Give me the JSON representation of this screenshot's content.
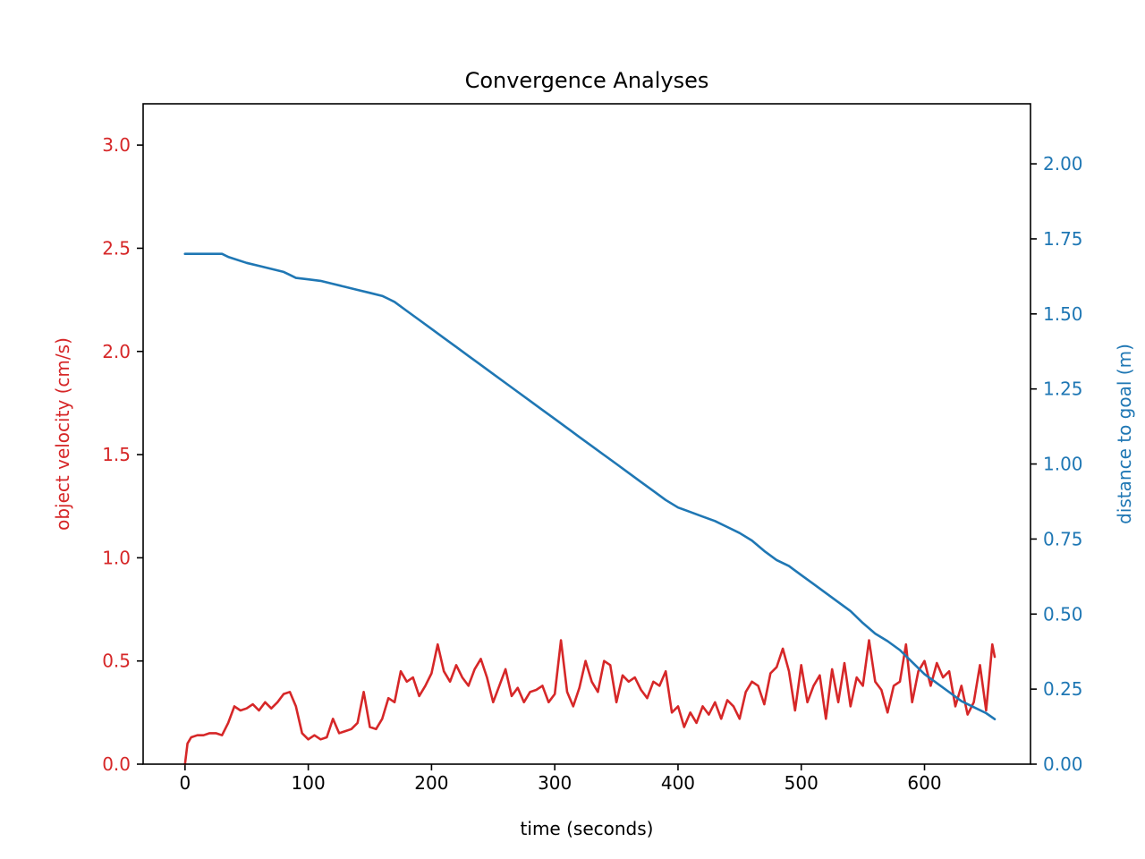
{
  "chart_data": {
    "type": "line",
    "title": "Convergence Analyses",
    "xlabel": "time (seconds)",
    "ylabel_left": "object velocity (cm/s)",
    "ylabel_right": "distance to goal (m)",
    "xlim": [
      -34,
      686
    ],
    "ylim_left": [
      0.0,
      3.2
    ],
    "ylim_right": [
      0.0,
      2.2
    ],
    "x_ticks": [
      0,
      100,
      200,
      300,
      400,
      500,
      600
    ],
    "x_tick_labels": [
      "0",
      "100",
      "200",
      "300",
      "400",
      "500",
      "600"
    ],
    "y_left_ticks": [
      0.0,
      0.5,
      1.0,
      1.5,
      2.0,
      2.5,
      3.0
    ],
    "y_left_tick_labels": [
      "0.0",
      "0.5",
      "1.0",
      "1.5",
      "2.0",
      "2.5",
      "3.0"
    ],
    "y_right_ticks": [
      0.0,
      0.25,
      0.5,
      0.75,
      1.0,
      1.25,
      1.5,
      1.75,
      2.0
    ],
    "y_right_tick_labels": [
      "0.00",
      "0.25",
      "0.50",
      "0.75",
      "1.00",
      "1.25",
      "1.50",
      "1.75",
      "2.00"
    ],
    "grid": false,
    "colors": {
      "left": "#d62728",
      "right": "#1f77b4",
      "axes": "#000000"
    },
    "series": [
      {
        "axis": "left",
        "x": [
          0,
          2,
          5,
          10,
          15,
          20,
          25,
          30,
          35,
          40,
          45,
          50,
          55,
          60,
          65,
          70,
          75,
          80,
          85,
          90,
          95,
          100,
          105,
          110,
          115,
          120,
          125,
          130,
          135,
          140,
          145,
          150,
          155,
          160,
          165,
          170,
          175,
          180,
          185,
          190,
          195,
          200,
          205,
          210,
          215,
          220,
          225,
          230,
          235,
          240,
          245,
          250,
          255,
          260,
          265,
          270,
          275,
          280,
          285,
          290,
          295,
          300,
          305,
          310,
          315,
          320,
          325,
          330,
          335,
          340,
          345,
          350,
          355,
          360,
          365,
          370,
          375,
          380,
          385,
          390,
          395,
          400,
          405,
          410,
          415,
          420,
          425,
          430,
          435,
          440,
          445,
          450,
          455,
          460,
          465,
          470,
          475,
          480,
          485,
          490,
          495,
          500,
          505,
          510,
          515,
          520,
          525,
          530,
          535,
          540,
          545,
          550,
          555,
          560,
          565,
          570,
          575,
          580,
          585,
          590,
          595,
          600,
          605,
          610,
          615,
          620,
          625,
          630,
          635,
          640,
          645,
          650,
          655,
          657
        ],
        "values": [
          0.0,
          0.1,
          0.13,
          0.14,
          0.14,
          0.15,
          0.15,
          0.14,
          0.2,
          0.28,
          0.26,
          0.27,
          0.29,
          0.26,
          0.3,
          0.27,
          0.3,
          0.34,
          0.35,
          0.28,
          0.15,
          0.12,
          0.14,
          0.12,
          0.13,
          0.22,
          0.15,
          0.16,
          0.17,
          0.2,
          0.35,
          0.18,
          0.17,
          0.22,
          0.32,
          0.3,
          0.45,
          0.4,
          0.42,
          0.33,
          0.38,
          0.44,
          0.58,
          0.45,
          0.4,
          0.48,
          0.42,
          0.38,
          0.46,
          0.51,
          0.42,
          0.3,
          0.38,
          0.46,
          0.33,
          0.37,
          0.3,
          0.35,
          0.36,
          0.38,
          0.3,
          0.34,
          0.6,
          0.35,
          0.28,
          0.37,
          0.5,
          0.4,
          0.35,
          0.5,
          0.48,
          0.3,
          0.43,
          0.4,
          0.42,
          0.36,
          0.32,
          0.4,
          0.38,
          0.45,
          0.25,
          0.28,
          0.18,
          0.25,
          0.2,
          0.28,
          0.24,
          0.3,
          0.22,
          0.31,
          0.28,
          0.22,
          0.35,
          0.4,
          0.38,
          0.29,
          0.44,
          0.47,
          0.56,
          0.45,
          0.26,
          0.48,
          0.3,
          0.38,
          0.43,
          0.22,
          0.46,
          0.3,
          0.49,
          0.28,
          0.42,
          0.38,
          0.6,
          0.4,
          0.36,
          0.25,
          0.38,
          0.4,
          0.58,
          0.3,
          0.45,
          0.5,
          0.38,
          0.49,
          0.42,
          0.45,
          0.28,
          0.38,
          0.24,
          0.3,
          0.48,
          0.26,
          0.58,
          0.52
        ]
      },
      {
        "axis": "right",
        "x": [
          0,
          10,
          20,
          30,
          35,
          50,
          60,
          70,
          80,
          85,
          90,
          100,
          110,
          120,
          130,
          140,
          150,
          160,
          165,
          170,
          180,
          190,
          200,
          210,
          220,
          230,
          240,
          250,
          260,
          270,
          280,
          290,
          300,
          310,
          320,
          330,
          340,
          350,
          360,
          370,
          380,
          390,
          400,
          410,
          420,
          430,
          440,
          450,
          460,
          470,
          480,
          490,
          500,
          510,
          520,
          530,
          540,
          550,
          560,
          570,
          580,
          590,
          600,
          610,
          620,
          630,
          640,
          650,
          657
        ],
        "values": [
          1.7,
          1.7,
          1.7,
          1.7,
          1.69,
          1.67,
          1.66,
          1.65,
          1.64,
          1.63,
          1.62,
          1.615,
          1.61,
          1.6,
          1.59,
          1.58,
          1.57,
          1.56,
          1.55,
          1.54,
          1.51,
          1.48,
          1.45,
          1.42,
          1.39,
          1.36,
          1.33,
          1.3,
          1.27,
          1.24,
          1.21,
          1.18,
          1.15,
          1.12,
          1.09,
          1.06,
          1.03,
          1.0,
          0.97,
          0.94,
          0.91,
          0.88,
          0.855,
          0.84,
          0.825,
          0.81,
          0.79,
          0.77,
          0.745,
          0.71,
          0.68,
          0.66,
          0.63,
          0.6,
          0.57,
          0.54,
          0.51,
          0.47,
          0.435,
          0.41,
          0.38,
          0.34,
          0.3,
          0.27,
          0.24,
          0.21,
          0.19,
          0.17,
          0.15
        ]
      }
    ]
  }
}
